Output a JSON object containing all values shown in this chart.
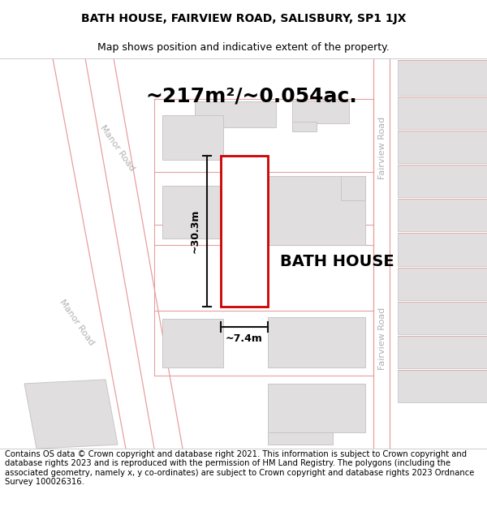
{
  "title": "BATH HOUSE, FAIRVIEW ROAD, SALISBURY, SP1 1JX",
  "subtitle": "Map shows position and indicative extent of the property.",
  "footer": "Contains OS data © Crown copyright and database right 2021. This information is subject to Crown copyright and database rights 2023 and is reproduced with the permission of HM Land Registry. The polygons (including the associated geometry, namely x, y co-ordinates) are subject to Crown copyright and database rights 2023 Ordnance Survey 100026316.",
  "area_label": "~217m²/~0.054ac.",
  "width_label": "~7.4m",
  "height_label": "~30.3m",
  "property_label": "BATH HOUSE",
  "map_bg": "#f7f5f5",
  "road_color": "#e8a0a0",
  "road_fill": "#f0eeee",
  "building_color": "#e0dede",
  "building_edge": "#c8c6c6",
  "property_outline_color": "#cc0000",
  "dim_line_color": "#111111",
  "road_label_color": "#b0b0b0",
  "title_fontsize": 10,
  "subtitle_fontsize": 9,
  "footer_fontsize": 7.2,
  "area_fontsize": 18,
  "prop_label_fontsize": 14,
  "dim_fontsize": 9
}
